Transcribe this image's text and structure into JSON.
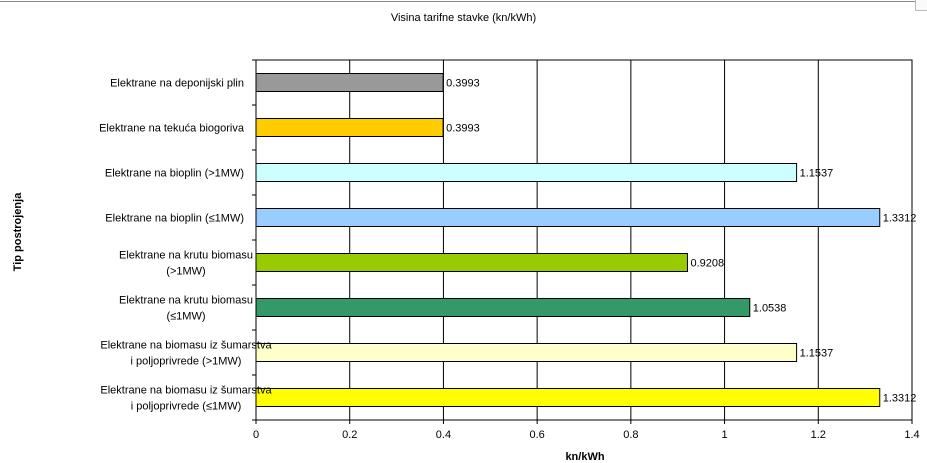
{
  "chart_data": {
    "type": "bar",
    "orientation": "horizontal",
    "title": "Visina tarifne stavke (kn/kWh)",
    "xlabel": "kn/kWh",
    "ylabel": "Tip postrojenja",
    "xlim": [
      0,
      1.4
    ],
    "x_ticks": [
      "0",
      "0.2",
      "0.4",
      "0.6",
      "0.8",
      "1",
      "1.2",
      "1.4"
    ],
    "grid": "vertical",
    "categories": [
      [
        "Elektrane na deponijski plin"
      ],
      [
        "Elektrane na tekuća biogoriva"
      ],
      [
        "Elektrane na bioplin (>1MW)"
      ],
      [
        "Elektrane na bioplin (≤1MW)"
      ],
      [
        "Elektrane na krutu biomasu",
        "(>1MW)"
      ],
      [
        "Elektrane na krutu biomasu",
        "(≤1MW)"
      ],
      [
        "Elektrane na biomasu iz šumarstva",
        "i poljoprivrede (>1MW)"
      ],
      [
        "Elektrane na biomasu iz šumarstva",
        "i poljoprivrede (≤1MW)"
      ]
    ],
    "values": [
      0.3993,
      0.3993,
      1.1537,
      1.3312,
      0.9208,
      1.0538,
      1.1537,
      1.3312
    ],
    "value_labels": [
      "0.3993",
      "0.3993",
      "1.1537",
      "1.3312",
      "0.9208",
      "1.0538",
      "1.1537",
      "1.3312"
    ],
    "colors": [
      "#999999",
      "#FFCC00",
      "#CCFFFF",
      "#99CCFF",
      "#99CC00",
      "#339966",
      "#FFFFCC",
      "#FFFF00"
    ]
  }
}
